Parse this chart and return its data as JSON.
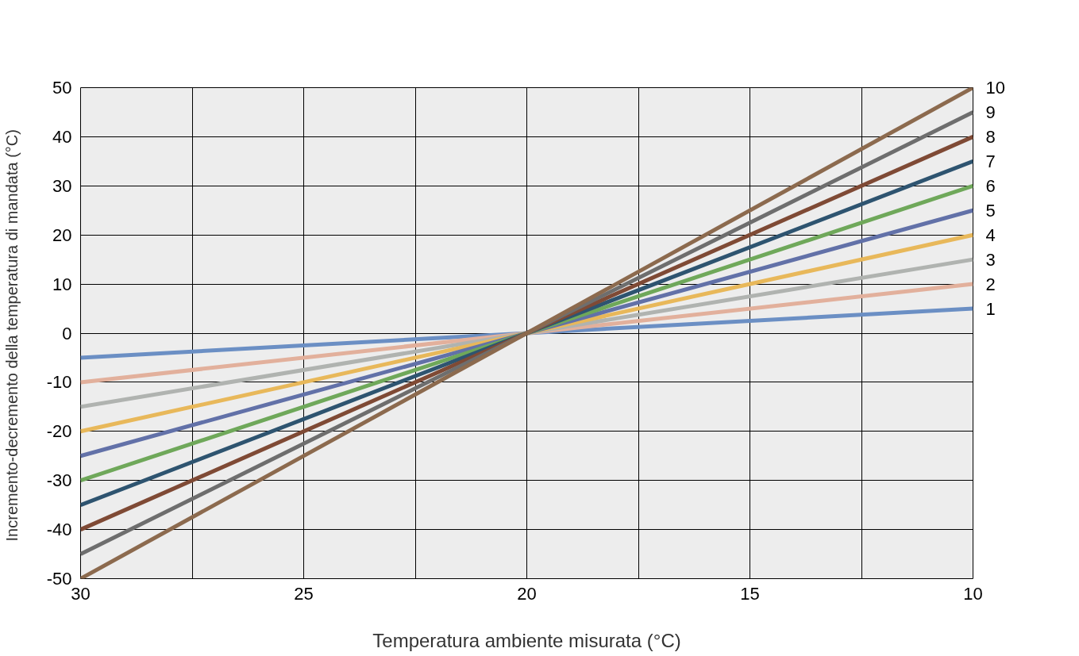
{
  "chart_data": {
    "type": "line",
    "xlabel": "Temperatura ambiente misurata (°C)",
    "ylabel": "Incremento-decremento della temperatura di mandata  (°C)",
    "x": [
      30,
      10
    ],
    "xlim": [
      30,
      10
    ],
    "ylim": [
      -50,
      50
    ],
    "xticks": [
      30,
      {
        "value": 27.5,
        "label": null
      },
      25,
      {
        "value": 22.5,
        "label": null
      },
      20,
      {
        "value": 17.5,
        "label": null
      },
      15,
      {
        "value": 12.5,
        "label": null
      },
      10
    ],
    "yticks": [
      -50,
      -40,
      -30,
      -20,
      -10,
      0,
      10,
      20,
      30,
      40,
      50
    ],
    "grid": true,
    "marker": "none",
    "line_style": "solid",
    "series": [
      {
        "name": "1",
        "color": "#6b8fc4",
        "values": [
          -5,
          5
        ]
      },
      {
        "name": "2",
        "color": "#e2b09c",
        "values": [
          -10,
          10
        ]
      },
      {
        "name": "3",
        "color": "#b0b3b0",
        "values": [
          -15,
          15
        ]
      },
      {
        "name": "4",
        "color": "#e8b85a",
        "values": [
          -20,
          20
        ]
      },
      {
        "name": "5",
        "color": "#6271a8",
        "values": [
          -25,
          25
        ]
      },
      {
        "name": "6",
        "color": "#6fa85a",
        "values": [
          -30,
          30
        ]
      },
      {
        "name": "7",
        "color": "#2e5470",
        "values": [
          -35,
          35
        ]
      },
      {
        "name": "8",
        "color": "#7f4a35",
        "values": [
          -40,
          40
        ]
      },
      {
        "name": "9",
        "color": "#6e6e6e",
        "values": [
          -45,
          45
        ]
      },
      {
        "name": "10",
        "color": "#8c6a4e",
        "values": [
          -50,
          50
        ]
      }
    ]
  }
}
